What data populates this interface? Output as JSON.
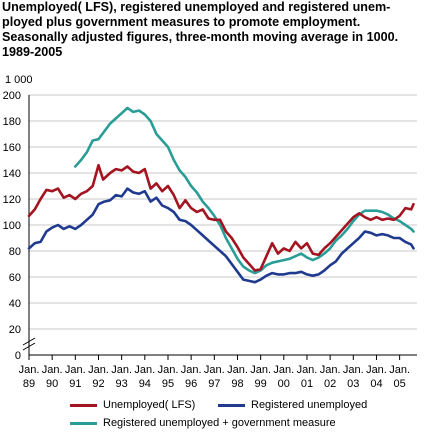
{
  "title_lines": [
    "Unemployed( LFS), registered unemployed and registered unem-",
    "ployed plus government measures to promote employment.",
    "Seasonally adjusted figures, three-month moving average in 1000.",
    "1989-2005"
  ],
  "chart_data": {
    "type": "line",
    "unit_label": "1 000",
    "ylim": [
      0,
      200
    ],
    "y_ticks": [
      0,
      20,
      40,
      60,
      80,
      100,
      120,
      140,
      160,
      180,
      200
    ],
    "xlim": [
      1989.0,
      2005.75
    ],
    "x_ticks": [
      {
        "x": 1989,
        "top": "Jan.",
        "bottom": "89"
      },
      {
        "x": 1990,
        "top": "Jan.",
        "bottom": "90"
      },
      {
        "x": 1991,
        "top": "Jan.",
        "bottom": "91"
      },
      {
        "x": 1992,
        "top": "Jan.",
        "bottom": "92"
      },
      {
        "x": 1993,
        "top": "Jan.",
        "bottom": "93"
      },
      {
        "x": 1994,
        "top": "Jan.",
        "bottom": "94"
      },
      {
        "x": 1995,
        "top": "Jan.",
        "bottom": "95"
      },
      {
        "x": 1996,
        "top": "Jan.",
        "bottom": "96"
      },
      {
        "x": 1997,
        "top": "Jan.",
        "bottom": "97"
      },
      {
        "x": 1998,
        "top": "Jan.",
        "bottom": "98"
      },
      {
        "x": 1999,
        "top": "Jan.",
        "bottom": "99"
      },
      {
        "x": 2000,
        "top": "Jan.",
        "bottom": "00"
      },
      {
        "x": 2001,
        "top": "Jan.",
        "bottom": "01"
      },
      {
        "x": 2002,
        "top": "Jan.",
        "bottom": "02"
      },
      {
        "x": 2003,
        "top": "Jan.",
        "bottom": "03"
      },
      {
        "x": 2004,
        "top": "Jan.",
        "bottom": "04"
      },
      {
        "x": 2005,
        "top": "Jan.",
        "bottom": "05"
      }
    ],
    "grid": "horizontal",
    "axis_break": true,
    "legend_position": "bottom",
    "series": [
      {
        "name": "Unemployed( LFS)",
        "color": "#a31420",
        "points": [
          [
            1989.0,
            107
          ],
          [
            1989.25,
            112
          ],
          [
            1989.5,
            120
          ],
          [
            1989.75,
            127
          ],
          [
            1990.0,
            126
          ],
          [
            1990.25,
            128
          ],
          [
            1990.5,
            121
          ],
          [
            1990.75,
            123
          ],
          [
            1991.0,
            120
          ],
          [
            1991.25,
            124
          ],
          [
            1991.5,
            126
          ],
          [
            1991.75,
            130
          ],
          [
            1992.0,
            146
          ],
          [
            1992.2,
            135
          ],
          [
            1992.5,
            140
          ],
          [
            1992.75,
            143
          ],
          [
            1993.0,
            142
          ],
          [
            1993.25,
            145
          ],
          [
            1993.5,
            141
          ],
          [
            1993.75,
            140
          ],
          [
            1994.0,
            143
          ],
          [
            1994.25,
            128
          ],
          [
            1994.5,
            132
          ],
          [
            1994.75,
            126
          ],
          [
            1995.0,
            130
          ],
          [
            1995.25,
            123
          ],
          [
            1995.5,
            113
          ],
          [
            1995.75,
            119
          ],
          [
            1996.0,
            113
          ],
          [
            1996.25,
            110
          ],
          [
            1996.5,
            112
          ],
          [
            1996.75,
            105
          ],
          [
            1997.0,
            104
          ],
          [
            1997.25,
            104
          ],
          [
            1997.5,
            95
          ],
          [
            1997.75,
            90
          ],
          [
            1998.0,
            83
          ],
          [
            1998.25,
            75
          ],
          [
            1998.5,
            70
          ],
          [
            1998.75,
            65
          ],
          [
            1999.0,
            66
          ],
          [
            1999.25,
            76
          ],
          [
            1999.5,
            86
          ],
          [
            1999.75,
            78
          ],
          [
            2000.0,
            82
          ],
          [
            2000.25,
            80
          ],
          [
            2000.5,
            87
          ],
          [
            2000.75,
            82
          ],
          [
            2001.0,
            86
          ],
          [
            2001.25,
            78
          ],
          [
            2001.5,
            77
          ],
          [
            2001.75,
            82
          ],
          [
            2002.0,
            86
          ],
          [
            2002.25,
            91
          ],
          [
            2002.5,
            96
          ],
          [
            2002.75,
            101
          ],
          [
            2003.0,
            106
          ],
          [
            2003.25,
            109
          ],
          [
            2003.5,
            106
          ],
          [
            2003.75,
            104
          ],
          [
            2004.0,
            106
          ],
          [
            2004.25,
            104
          ],
          [
            2004.5,
            105
          ],
          [
            2004.75,
            104
          ],
          [
            2005.0,
            107
          ],
          [
            2005.25,
            113
          ],
          [
            2005.5,
            112
          ],
          [
            2005.6,
            116
          ]
        ]
      },
      {
        "name": "Registered unemployed",
        "color": "#1f3a8f",
        "points": [
          [
            1989.0,
            82
          ],
          [
            1989.25,
            86
          ],
          [
            1989.5,
            87
          ],
          [
            1989.75,
            95
          ],
          [
            1990.0,
            98
          ],
          [
            1990.25,
            100
          ],
          [
            1990.5,
            97
          ],
          [
            1990.75,
            99
          ],
          [
            1991.0,
            97
          ],
          [
            1991.25,
            100
          ],
          [
            1991.5,
            104
          ],
          [
            1991.75,
            108
          ],
          [
            1992.0,
            116
          ],
          [
            1992.25,
            118
          ],
          [
            1992.5,
            119
          ],
          [
            1992.75,
            123
          ],
          [
            1993.0,
            122
          ],
          [
            1993.25,
            128
          ],
          [
            1993.5,
            125
          ],
          [
            1993.75,
            124
          ],
          [
            1994.0,
            126
          ],
          [
            1994.25,
            118
          ],
          [
            1994.5,
            121
          ],
          [
            1994.75,
            115
          ],
          [
            1995.0,
            113
          ],
          [
            1995.25,
            110
          ],
          [
            1995.5,
            104
          ],
          [
            1995.75,
            103
          ],
          [
            1996.0,
            100
          ],
          [
            1996.25,
            96
          ],
          [
            1996.5,
            92
          ],
          [
            1996.75,
            88
          ],
          [
            1997.0,
            84
          ],
          [
            1997.25,
            80
          ],
          [
            1997.5,
            76
          ],
          [
            1997.75,
            70
          ],
          [
            1998.0,
            64
          ],
          [
            1998.25,
            58
          ],
          [
            1998.5,
            57
          ],
          [
            1998.75,
            56
          ],
          [
            1999.0,
            58
          ],
          [
            1999.25,
            61
          ],
          [
            1999.5,
            63
          ],
          [
            1999.75,
            62
          ],
          [
            2000.0,
            62
          ],
          [
            2000.25,
            63
          ],
          [
            2000.5,
            63
          ],
          [
            2000.75,
            64
          ],
          [
            2001.0,
            62
          ],
          [
            2001.25,
            61
          ],
          [
            2001.5,
            62
          ],
          [
            2001.75,
            65
          ],
          [
            2002.0,
            69
          ],
          [
            2002.25,
            72
          ],
          [
            2002.5,
            78
          ],
          [
            2002.75,
            82
          ],
          [
            2003.0,
            86
          ],
          [
            2003.25,
            90
          ],
          [
            2003.5,
            95
          ],
          [
            2003.75,
            94
          ],
          [
            2004.0,
            92
          ],
          [
            2004.25,
            93
          ],
          [
            2004.5,
            92
          ],
          [
            2004.75,
            90
          ],
          [
            2005.0,
            90
          ],
          [
            2005.25,
            87
          ],
          [
            2005.5,
            85
          ],
          [
            2005.6,
            82
          ]
        ]
      },
      {
        "name": "Registered unemployed + government measure",
        "color": "#2a9d96",
        "points": [
          [
            1991.0,
            145
          ],
          [
            1991.25,
            150
          ],
          [
            1991.5,
            156
          ],
          [
            1991.75,
            165
          ],
          [
            1992.0,
            166
          ],
          [
            1992.25,
            172
          ],
          [
            1992.5,
            178
          ],
          [
            1992.75,
            182
          ],
          [
            1993.0,
            186
          ],
          [
            1993.25,
            190
          ],
          [
            1993.5,
            187
          ],
          [
            1993.75,
            188
          ],
          [
            1994.0,
            185
          ],
          [
            1994.25,
            180
          ],
          [
            1994.5,
            170
          ],
          [
            1994.75,
            165
          ],
          [
            1995.0,
            160
          ],
          [
            1995.25,
            150
          ],
          [
            1995.5,
            142
          ],
          [
            1995.75,
            137
          ],
          [
            1996.0,
            130
          ],
          [
            1996.25,
            125
          ],
          [
            1996.5,
            118
          ],
          [
            1996.75,
            113
          ],
          [
            1997.0,
            107
          ],
          [
            1997.25,
            100
          ],
          [
            1997.5,
            90
          ],
          [
            1997.75,
            82
          ],
          [
            1998.0,
            74
          ],
          [
            1998.25,
            68
          ],
          [
            1998.5,
            65
          ],
          [
            1998.75,
            63
          ],
          [
            1999.0,
            65
          ],
          [
            1999.25,
            69
          ],
          [
            1999.5,
            71
          ],
          [
            1999.75,
            72
          ],
          [
            2000.0,
            73
          ],
          [
            2000.25,
            74
          ],
          [
            2000.5,
            76
          ],
          [
            2000.75,
            78
          ],
          [
            2001.0,
            75
          ],
          [
            2001.25,
            73
          ],
          [
            2001.5,
            75
          ],
          [
            2001.75,
            78
          ],
          [
            2002.0,
            82
          ],
          [
            2002.25,
            88
          ],
          [
            2002.5,
            92
          ],
          [
            2002.75,
            97
          ],
          [
            2003.0,
            103
          ],
          [
            2003.25,
            108
          ],
          [
            2003.5,
            111
          ],
          [
            2003.75,
            111
          ],
          [
            2004.0,
            111
          ],
          [
            2004.25,
            110
          ],
          [
            2004.5,
            108
          ],
          [
            2004.75,
            105
          ],
          [
            2005.0,
            103
          ],
          [
            2005.25,
            100
          ],
          [
            2005.5,
            97
          ],
          [
            2005.6,
            95
          ]
        ]
      }
    ]
  }
}
